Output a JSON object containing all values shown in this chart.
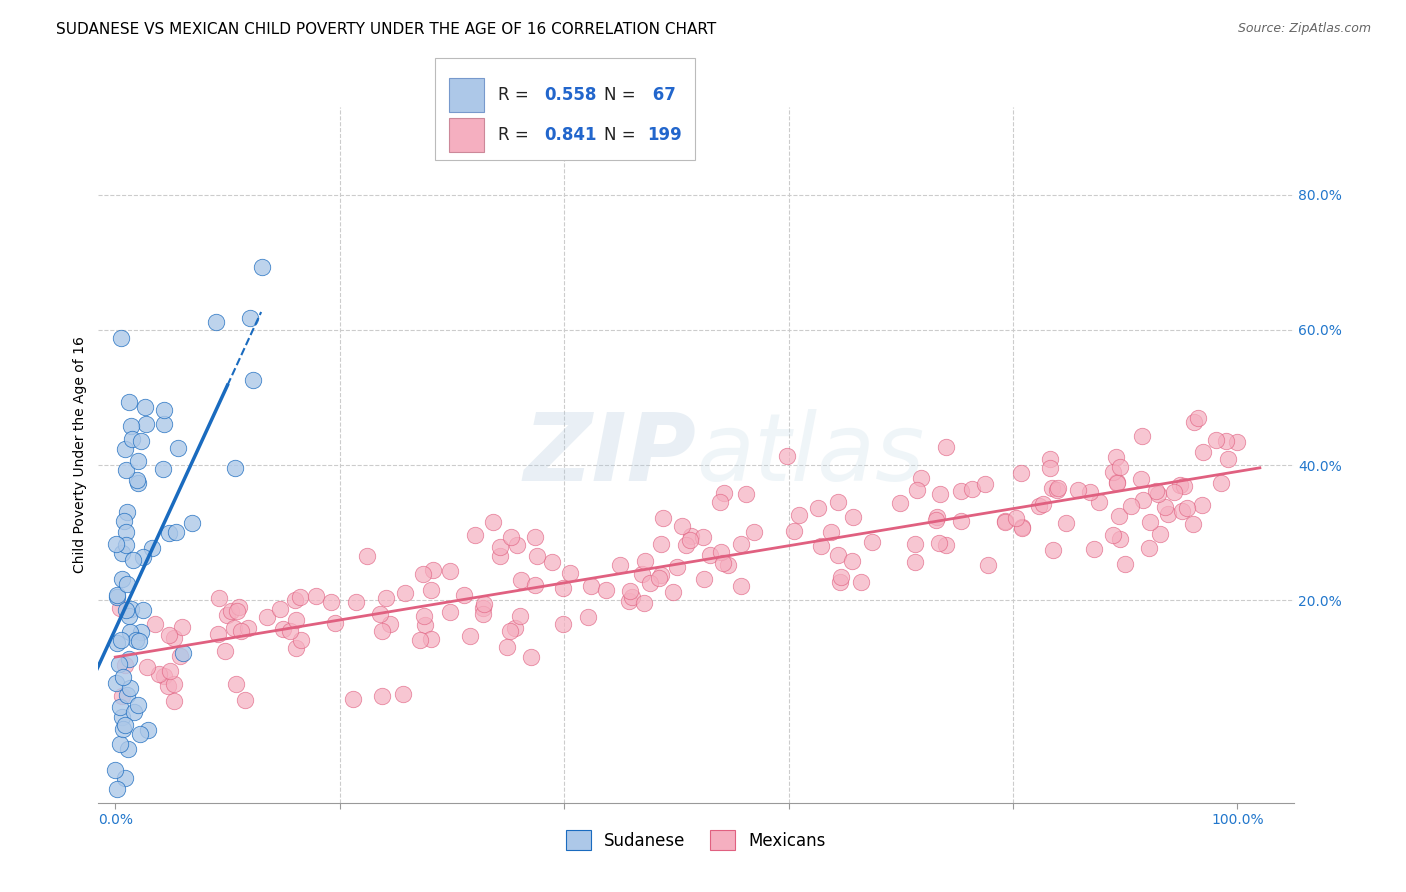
{
  "title": "SUDANESE VS MEXICAN CHILD POVERTY UNDER THE AGE OF 16 CORRELATION CHART",
  "source": "Source: ZipAtlas.com",
  "xlabel_ticks": [
    "0.0%",
    "",
    "",
    "",
    "",
    "100.0%"
  ],
  "xlabel_tick_vals": [
    0.0,
    0.2,
    0.4,
    0.6,
    0.8,
    1.0
  ],
  "ylabel_ticks": [
    "20.0%",
    "40.0%",
    "60.0%",
    "80.0%"
  ],
  "ylabel_tick_vals": [
    0.2,
    0.4,
    0.6,
    0.8
  ],
  "ylabel": "Child Poverty Under the Age of 16",
  "sudanese_R": 0.558,
  "sudanese_N": 67,
  "mexican_R": 0.841,
  "mexican_N": 199,
  "sudanese_color": "#adc8e8",
  "sudanese_line_color": "#1a6bbf",
  "mexican_color": "#f5afc0",
  "mexican_line_color": "#e06080",
  "background_color": "#ffffff",
  "grid_color": "#cccccc",
  "title_fontsize": 11,
  "axis_label_fontsize": 10,
  "tick_fontsize": 10,
  "legend_fontsize": 13,
  "xlim": [
    -0.015,
    1.05
  ],
  "ylim": [
    -0.1,
    0.93
  ]
}
